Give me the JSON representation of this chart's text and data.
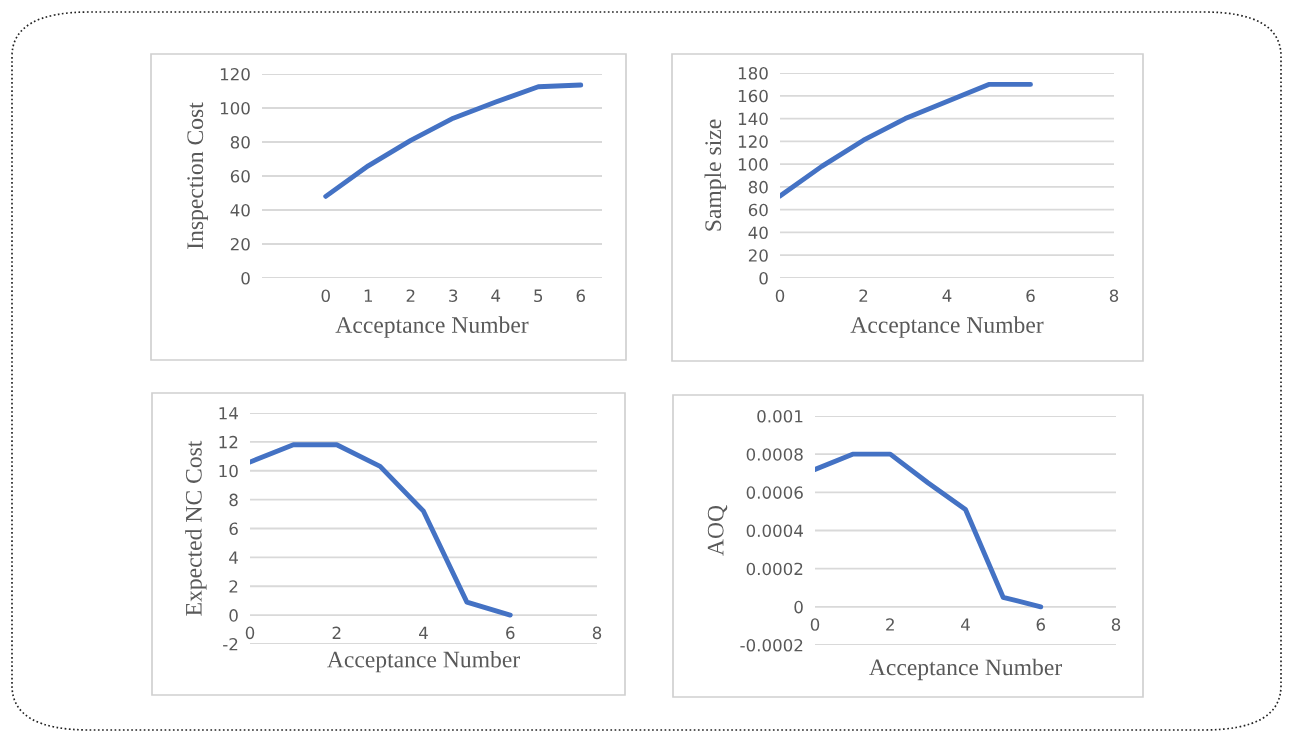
{
  "chart_data": [
    {
      "type": "line",
      "categories": [
        null,
        "0",
        "1",
        "2",
        "3",
        "4",
        "5",
        "6"
      ],
      "xlabel": "Acceptance Number",
      "ylabel": "Inspection Cost",
      "ylim": [
        0,
        120
      ],
      "yticks": [
        0,
        20,
        40,
        60,
        80,
        100,
        120
      ],
      "grid": "y",
      "series": [
        {
          "color": "#4472c4",
          "values": [
            null,
            48,
            66,
            81,
            94,
            103.5,
            112.5,
            113.5
          ]
        }
      ]
    },
    {
      "type": "line",
      "x": [
        0,
        1,
        2,
        3,
        4,
        5,
        6
      ],
      "xlabel": "Acceptance Number",
      "ylabel": "Sample size",
      "xlim": [
        0,
        8
      ],
      "xticks": [
        0,
        2,
        4,
        6,
        8
      ],
      "ylim": [
        0,
        180
      ],
      "yticks": [
        0,
        20,
        40,
        60,
        80,
        100,
        120,
        140,
        160,
        180
      ],
      "grid": "y",
      "series": [
        {
          "color": "#4472c4",
          "values": [
            72,
            98,
            121,
            140,
            155,
            170,
            170
          ]
        }
      ]
    },
    {
      "type": "line",
      "x": [
        0,
        1,
        2,
        3,
        4,
        5,
        6
      ],
      "xlabel": "Acceptance Number",
      "ylabel": "Expected NC Cost",
      "xlim": [
        0,
        8
      ],
      "xticks": [
        0,
        2,
        4,
        6,
        8
      ],
      "ylim": [
        -2,
        14
      ],
      "yticks": [
        -2,
        0,
        2,
        4,
        6,
        8,
        10,
        12,
        14
      ],
      "grid": "y",
      "series": [
        {
          "color": "#4472c4",
          "values": [
            10.6,
            11.8,
            11.8,
            10.3,
            7.2,
            0.9,
            0
          ]
        }
      ]
    },
    {
      "type": "line",
      "x": [
        0,
        1,
        2,
        3,
        4,
        5,
        6
      ],
      "xlabel": "Acceptance Number",
      "ylabel": "AOQ",
      "xlim": [
        0,
        8
      ],
      "xticks": [
        0,
        2,
        4,
        6,
        8
      ],
      "ylim": [
        -0.0002,
        0.001
      ],
      "yticks": [
        -0.0002,
        0,
        0.0002,
        0.0004,
        0.0006,
        0.0008,
        0.001
      ],
      "grid": "y",
      "series": [
        {
          "color": "#4472c4",
          "values": [
            0.00072,
            0.0008,
            0.0008,
            0.00065,
            0.00051,
            5e-05,
            0
          ]
        }
      ]
    }
  ]
}
